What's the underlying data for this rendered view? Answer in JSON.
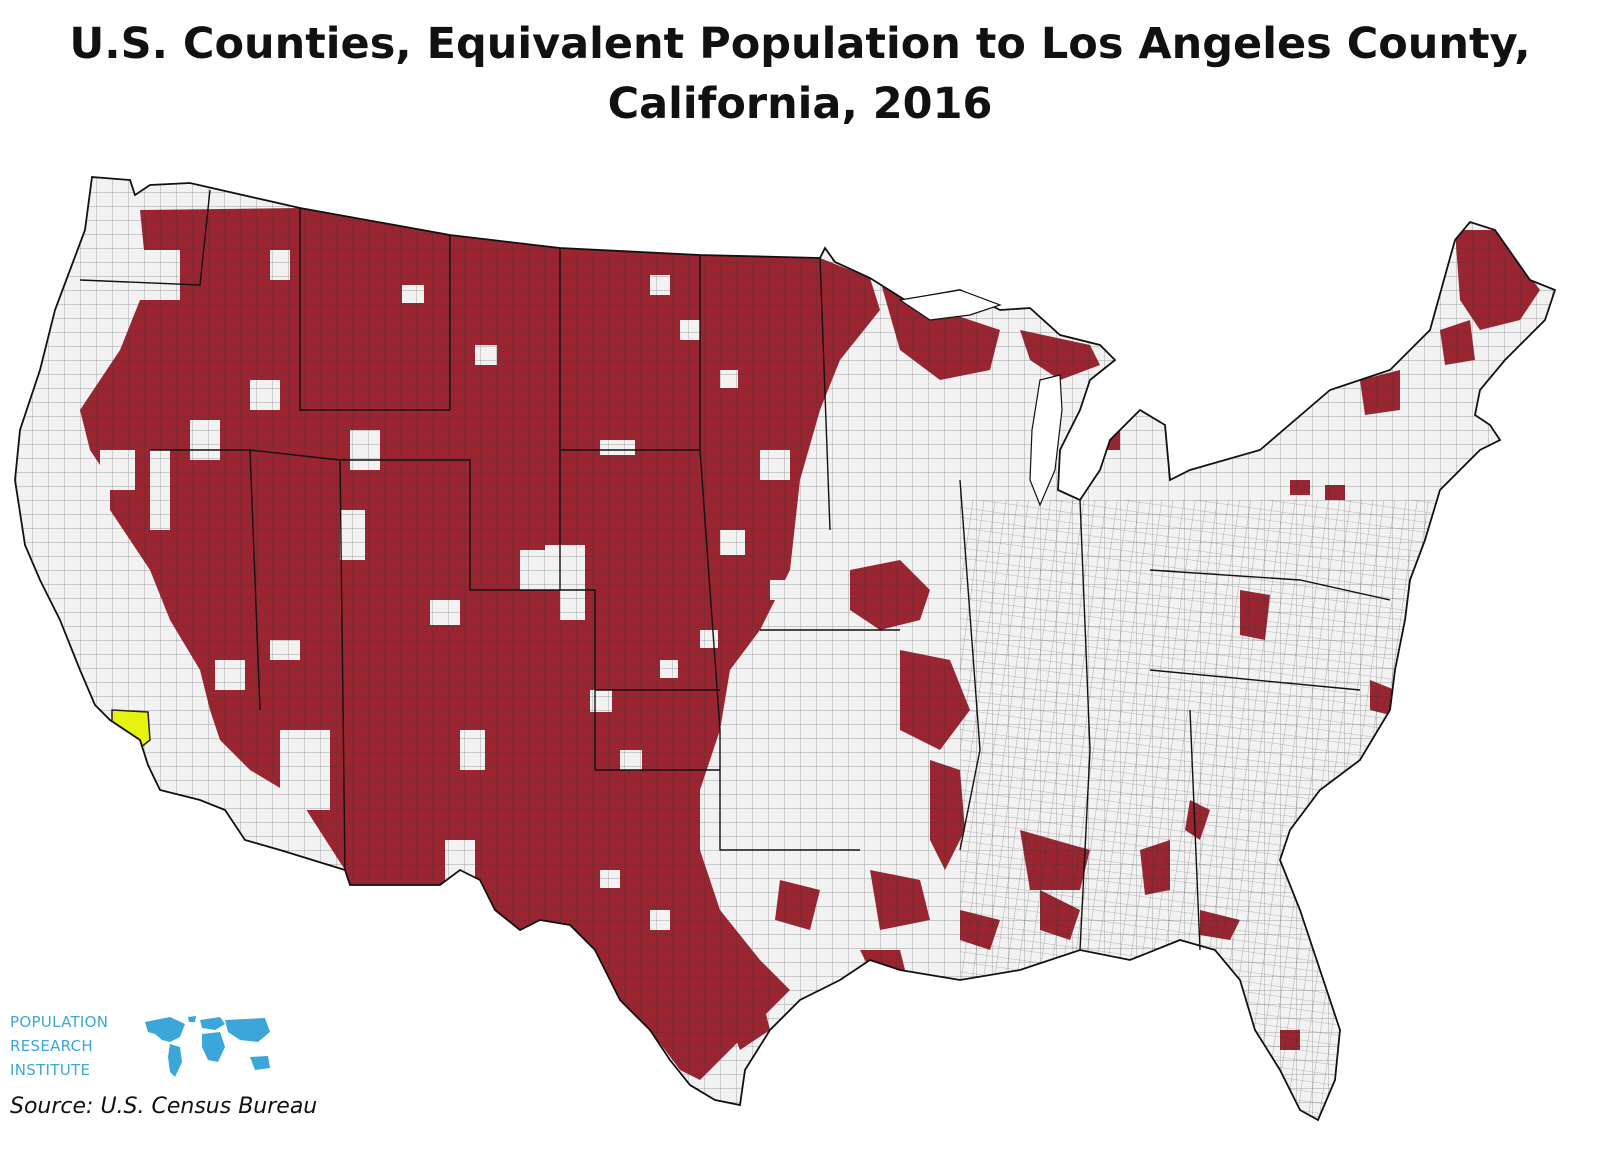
{
  "title": {
    "line1": "U.S. Counties, Equivalent Population to Los Angeles County,",
    "line2": "California, 2016"
  },
  "map": {
    "region": "Contiguous United States counties",
    "colors": {
      "equivalent_counties": "#9b2431",
      "los_angeles_county": "#e6f20f",
      "other_counties": "#f2f2f2",
      "borders": "#222222"
    }
  },
  "logo": {
    "line1": "POPULATION",
    "line2": "RESEARCH",
    "line3": "INSTITUTE",
    "color": "#3aa6d9",
    "icon": "world-map-icon"
  },
  "source": "Source: U.S. Census Bureau"
}
